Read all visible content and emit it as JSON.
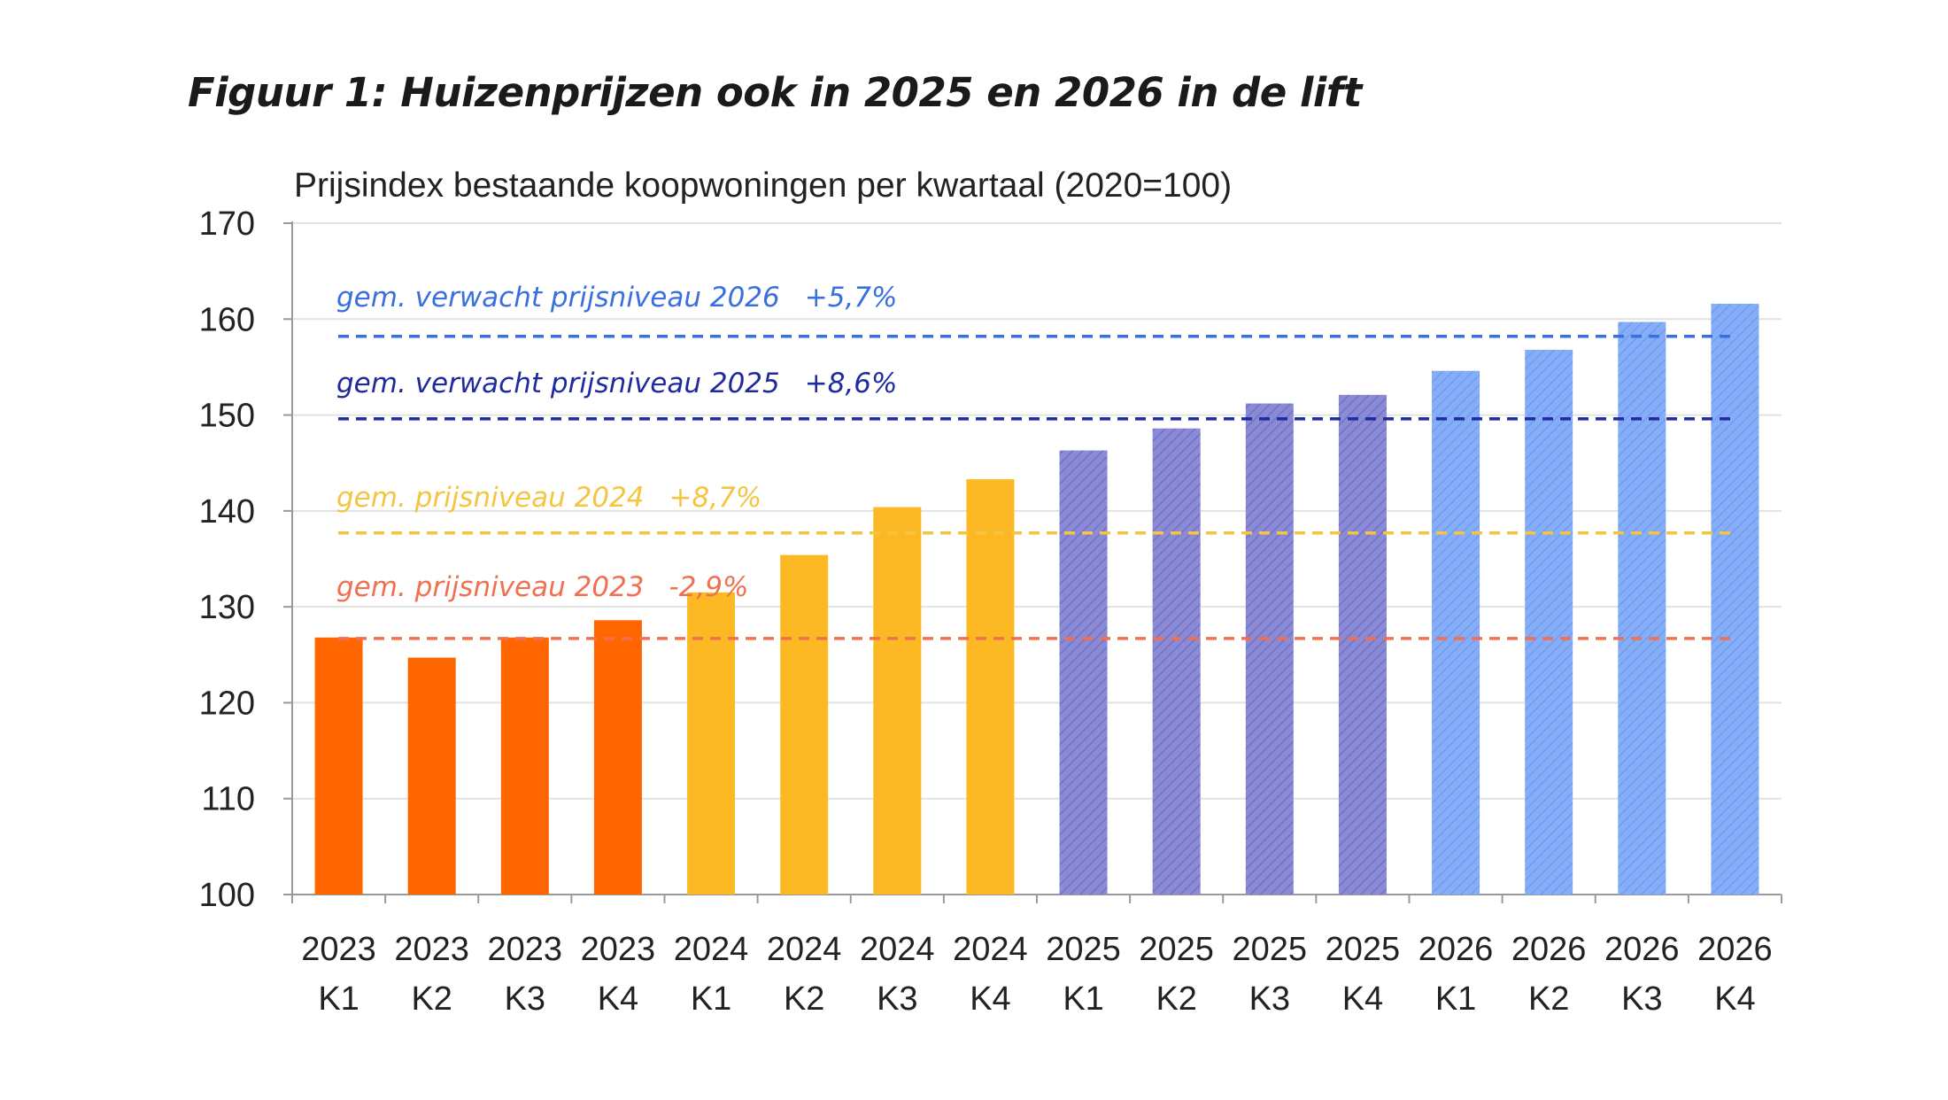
{
  "title": "Figuur 1: Huizenprijzen ook in 2025 en 2026 in de lift",
  "chart_data": {
    "type": "bar",
    "subtitle": "Prijsindex bestaande koopwoningen per kwartaal (2020=100)",
    "ylim": [
      100,
      170
    ],
    "yticks": [
      "100",
      "110",
      "120",
      "130",
      "140",
      "150",
      "160",
      "170"
    ],
    "grid": true,
    "categories": [
      {
        "year": "2023",
        "quarter": "K1"
      },
      {
        "year": "2023",
        "quarter": "K2"
      },
      {
        "year": "2023",
        "quarter": "K3"
      },
      {
        "year": "2023",
        "quarter": "K4"
      },
      {
        "year": "2024",
        "quarter": "K1"
      },
      {
        "year": "2024",
        "quarter": "K2"
      },
      {
        "year": "2024",
        "quarter": "K3"
      },
      {
        "year": "2024",
        "quarter": "K4"
      },
      {
        "year": "2025",
        "quarter": "K1"
      },
      {
        "year": "2025",
        "quarter": "K2"
      },
      {
        "year": "2025",
        "quarter": "K3"
      },
      {
        "year": "2025",
        "quarter": "K4"
      },
      {
        "year": "2026",
        "quarter": "K1"
      },
      {
        "year": "2026",
        "quarter": "K2"
      },
      {
        "year": "2026",
        "quarter": "K3"
      },
      {
        "year": "2026",
        "quarter": "K4"
      }
    ],
    "values": [
      126.8,
      124.7,
      126.8,
      128.6,
      131.5,
      135.4,
      140.4,
      143.3,
      146.3,
      148.6,
      151.2,
      152.1,
      154.6,
      156.8,
      159.7,
      161.6
    ],
    "bar_colors": [
      "#ff6600",
      "#ff6600",
      "#ff6600",
      "#ff6600",
      "#fdb924",
      "#fdb924",
      "#fdb924",
      "#fdb924",
      "#8a8ad6",
      "#8a8ad6",
      "#8a8ad6",
      "#8a8ad6",
      "#86aef8",
      "#86aef8",
      "#86aef8",
      "#86aef8"
    ],
    "bar_hatched": [
      false,
      false,
      false,
      false,
      false,
      false,
      false,
      false,
      true,
      true,
      true,
      true,
      true,
      true,
      true,
      true
    ],
    "reference_lines": [
      {
        "label": "gem. verwacht prijsniveau 2026",
        "change": "+5,7%",
        "value": 158.2,
        "color": "#3a6fe0"
      },
      {
        "label": "gem. verwacht prijsniveau 2025",
        "change": "+8,6%",
        "value": 149.6,
        "color": "#1f2a9e"
      },
      {
        "label": "gem. prijsniveau 2024",
        "change": "+8,7%",
        "value": 137.7,
        "color": "#f5c542"
      },
      {
        "label": "gem. prijsniveau 2023",
        "change": "-2,9%",
        "value": 126.7,
        "color": "#f07050"
      }
    ]
  }
}
